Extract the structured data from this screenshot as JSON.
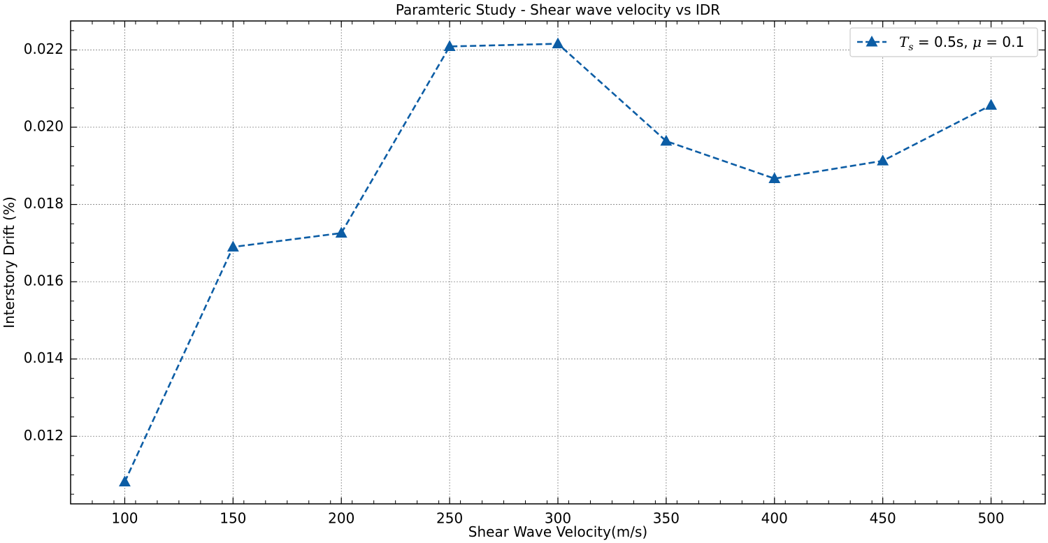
{
  "chart_data": {
    "type": "line",
    "title": "Paramteric Study - Shear wave velocity vs IDR",
    "xlabel": "Shear Wave Velocity(m/s)",
    "ylabel": "Interstory Drift (%)",
    "xlim": [
      75,
      525
    ],
    "ylim": [
      0.01025,
      0.02275
    ],
    "xticks": [
      100,
      150,
      200,
      250,
      300,
      350,
      400,
      450,
      500
    ],
    "xtick_labels": [
      "100",
      "150",
      "200",
      "250",
      "300",
      "350",
      "400",
      "450",
      "500"
    ],
    "yticks": [
      0.012,
      0.014,
      0.016,
      0.018,
      0.02,
      0.022
    ],
    "ytick_labels": [
      "0.012",
      "0.014",
      "0.016",
      "0.018",
      "0.020",
      "0.022"
    ],
    "grid": true,
    "legend_position": "top-right",
    "series": [
      {
        "name": "T_s = 0.5s, μ = 0.1",
        "legend_label": {
          "t": "T",
          "sub": "s",
          "eq1": " = 0.5s, ",
          "mu": "μ",
          "eq2": " = 0.1"
        },
        "color": "#0c5da5",
        "line_style": "dashed",
        "marker": "triangle-up",
        "x": [
          100,
          150,
          200,
          250,
          300,
          350,
          400,
          450,
          500
        ],
        "y": [
          0.01082,
          0.0169,
          0.01726,
          0.02209,
          0.02216,
          0.01964,
          0.01867,
          0.01913,
          0.02057
        ]
      }
    ]
  }
}
